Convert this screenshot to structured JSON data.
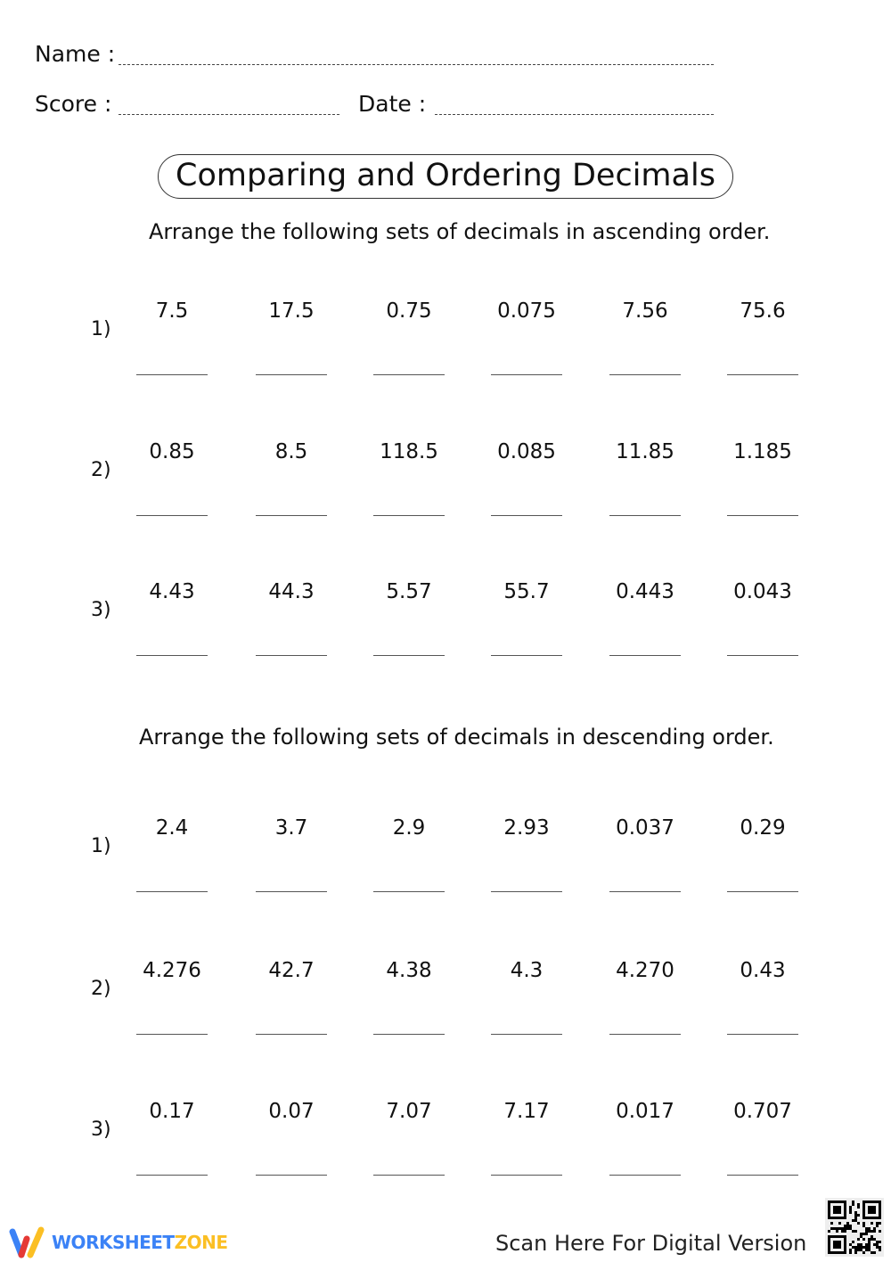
{
  "header": {
    "name_label": "Name :",
    "score_label": "Score :",
    "date_label": "Date :"
  },
  "title": "Comparing and Ordering Decimals",
  "sections": [
    {
      "instruction": "Arrange the following sets of decimals in ascending order.",
      "problems": [
        {
          "label": "1)",
          "numbers": [
            "7.5",
            "17.5",
            "0.75",
            "0.075",
            "7.56",
            "75.6"
          ]
        },
        {
          "label": "2)",
          "numbers": [
            "0.85",
            "8.5",
            "118.5",
            "0.085",
            "11.85",
            "1.185"
          ]
        },
        {
          "label": "3)",
          "numbers": [
            "4.43",
            "44.3",
            "5.57",
            "55.7",
            "0.443",
            "0.043"
          ]
        }
      ]
    },
    {
      "instruction": "Arrange the following sets of decimals in descending  order.",
      "problems": [
        {
          "label": "1)",
          "numbers": [
            "2.4",
            "3.7",
            "2.9",
            "2.93",
            "0.037",
            "0.29"
          ]
        },
        {
          "label": "2)",
          "numbers": [
            "4.276",
            "42.7",
            "4.38",
            "4.3",
            "4.270",
            "0.43"
          ]
        },
        {
          "label": "3)",
          "numbers": [
            "0.17",
            "0.07",
            "7.07",
            "7.17",
            "0.017",
            "0.707"
          ]
        }
      ]
    }
  ],
  "footer": {
    "brand_part1": "WORKSHEET",
    "brand_part2": "ZONE",
    "scan_text": "Scan Here For Digital Version",
    "qr_icon": "qr-code-icon",
    "colors": {
      "brand_blue": "#3b82f6",
      "brand_yellow": "#fbbf24",
      "brand_red": "#e53935"
    }
  }
}
